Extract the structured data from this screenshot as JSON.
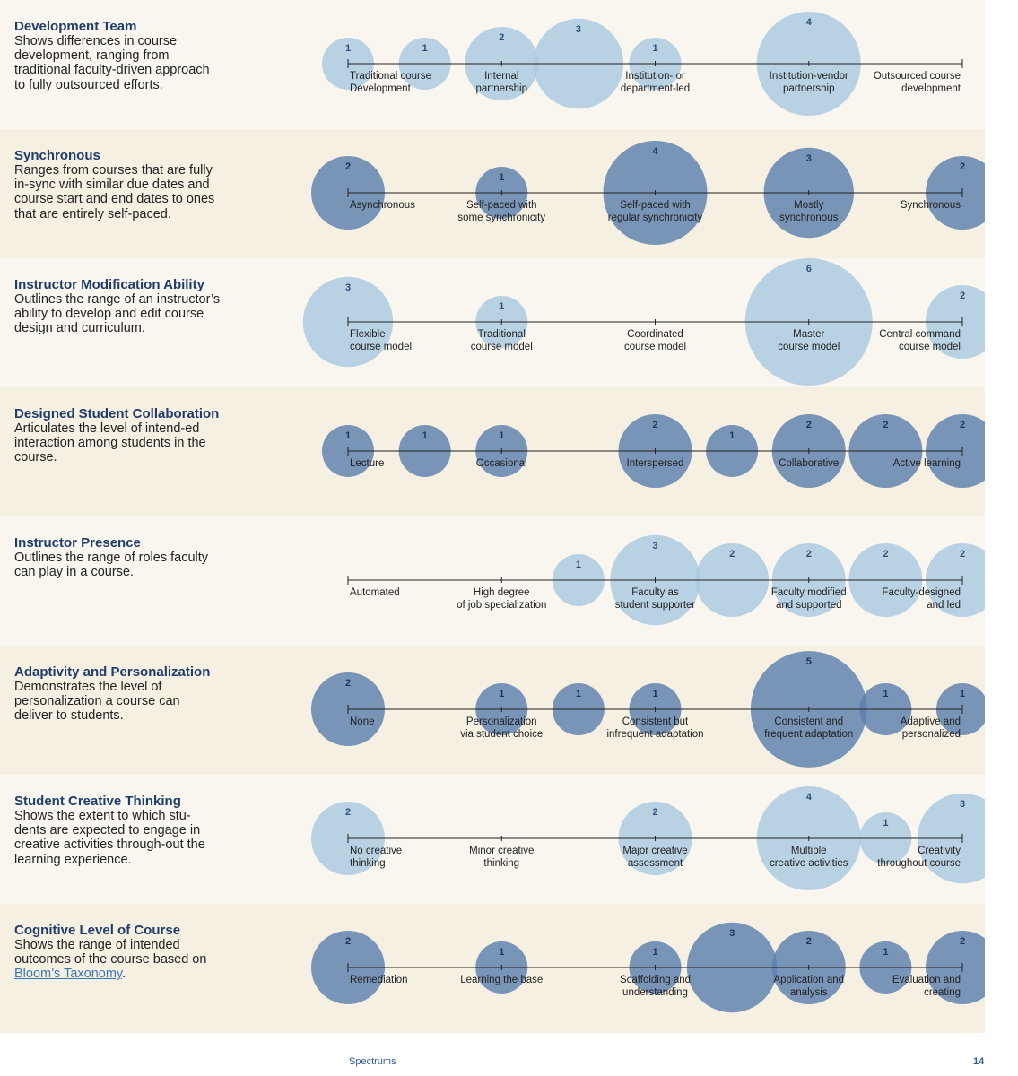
{
  "colors": {
    "light_bubble": "#a9c9e1",
    "dark_bubble": "#5b7fad",
    "count_light": "#2f4f7a",
    "count_dark": "#1e3558",
    "axis": "#222222",
    "title": "#1f3c6b",
    "link": "#3a78b5"
  },
  "footer": {
    "section": "Spectrums",
    "page": "14"
  },
  "rows": [
    {
      "title": "Development Team",
      "description": "Shows differences in course development, ranging from traditional faculty-driven approach to fully outsourced efforts.",
      "shade": "light",
      "bubble_color": "light",
      "tick_labels": [
        {
          "pos": 0,
          "text": [
            "Traditional course",
            "Development"
          ]
        },
        {
          "pos": 1,
          "text": [
            "Internal",
            "partnership"
          ]
        },
        {
          "pos": 2,
          "text": [
            "Institution- or",
            "department-led"
          ]
        },
        {
          "pos": 3,
          "text": [
            "Institution-vendor",
            "partnership"
          ]
        },
        {
          "pos": 4,
          "text": [
            "Outsourced course",
            "development"
          ]
        }
      ],
      "chart_data": {
        "type": "scatter",
        "x": [
          0,
          0.5,
          1,
          1.5,
          2,
          3
        ],
        "counts": [
          1,
          1,
          2,
          3,
          1,
          4
        ]
      }
    },
    {
      "title": "Synchronous",
      "description": "Ranges from courses that are fully in-sync with similar due dates and course start and end dates to ones that are entirely self-paced.",
      "shade": "tan",
      "bubble_color": "dark",
      "tick_labels": [
        {
          "pos": 0,
          "text": [
            "Asynchronous"
          ]
        },
        {
          "pos": 1,
          "text": [
            "Self-paced with",
            "some synchronicity"
          ]
        },
        {
          "pos": 2,
          "text": [
            "Self-paced with",
            "regular synchronicity"
          ]
        },
        {
          "pos": 3,
          "text": [
            "Mostly",
            "synchronous"
          ]
        },
        {
          "pos": 4,
          "text": [
            "Synchronous"
          ]
        }
      ],
      "chart_data": {
        "type": "scatter",
        "x": [
          0,
          1,
          2,
          3,
          4
        ],
        "counts": [
          2,
          1,
          4,
          3,
          2
        ]
      }
    },
    {
      "title": "Instructor Modification Ability",
      "description": "Outlines the range of an instructor’s ability to develop and edit course design and curriculum.",
      "shade": "light",
      "bubble_color": "light",
      "tick_labels": [
        {
          "pos": 0,
          "text": [
            "Flexible",
            "course model"
          ]
        },
        {
          "pos": 1,
          "text": [
            "Traditional",
            "course model"
          ]
        },
        {
          "pos": 2,
          "text": [
            "Coordinated",
            "course model"
          ]
        },
        {
          "pos": 3,
          "text": [
            "Master",
            "course model"
          ]
        },
        {
          "pos": 4,
          "text": [
            "Central command",
            "course model"
          ]
        }
      ],
      "chart_data": {
        "type": "scatter",
        "x": [
          0,
          1,
          3,
          4
        ],
        "counts": [
          3,
          1,
          6,
          2
        ]
      }
    },
    {
      "title": "Designed Student Collaboration",
      "description": "Articulates the level of intend-ed interaction among students in the course.",
      "shade": "tan",
      "bubble_color": "dark",
      "tick_labels": [
        {
          "pos": 0,
          "text": [
            "Lecture"
          ]
        },
        {
          "pos": 1,
          "text": [
            "Occasional"
          ]
        },
        {
          "pos": 2,
          "text": [
            "Interspersed"
          ]
        },
        {
          "pos": 3,
          "text": [
            "Collaborative"
          ]
        },
        {
          "pos": 4,
          "text": [
            "Active learning"
          ]
        }
      ],
      "chart_data": {
        "type": "scatter",
        "x": [
          0,
          0.5,
          1,
          2,
          2.5,
          3,
          3.5,
          4
        ],
        "counts": [
          1,
          1,
          1,
          2,
          1,
          2,
          2,
          2
        ]
      }
    },
    {
      "title": "Instructor Presence",
      "description": "Outlines the range of roles faculty can play in a course.",
      "shade": "light",
      "bubble_color": "light",
      "tick_labels": [
        {
          "pos": 0,
          "text": [
            "Automated"
          ]
        },
        {
          "pos": 1,
          "text": [
            "High degree",
            "of job specialization"
          ]
        },
        {
          "pos": 2,
          "text": [
            "Faculty as",
            "student supporter"
          ]
        },
        {
          "pos": 3,
          "text": [
            "Faculty modified",
            "and supported"
          ]
        },
        {
          "pos": 4,
          "text": [
            "Faculty-designed",
            "and led"
          ]
        }
      ],
      "chart_data": {
        "type": "scatter",
        "x": [
          1.5,
          2,
          2.5,
          3,
          3.5,
          4
        ],
        "counts": [
          1,
          3,
          2,
          2,
          2,
          2
        ]
      }
    },
    {
      "title": "Adaptivity and Personalization",
      "description": "Demonstrates the level of personalization a course can deliver to students.",
      "shade": "tan",
      "bubble_color": "dark",
      "tick_labels": [
        {
          "pos": 0,
          "text": [
            "None"
          ]
        },
        {
          "pos": 1,
          "text": [
            "Personalization",
            "via student choice"
          ]
        },
        {
          "pos": 2,
          "text": [
            "Consistent but",
            "infrequent adaptation"
          ]
        },
        {
          "pos": 3,
          "text": [
            "Consistent and",
            "frequent adaptation"
          ]
        },
        {
          "pos": 4,
          "text": [
            "Adaptive and",
            "personalized"
          ]
        }
      ],
      "chart_data": {
        "type": "scatter",
        "x": [
          0,
          1,
          1.5,
          2,
          3,
          3.5,
          4
        ],
        "counts": [
          2,
          1,
          1,
          1,
          5,
          1,
          1
        ]
      }
    },
    {
      "title": "Student Creative Thinking",
      "description": "Shows the extent to which stu-dents are expected to engage in creative activities through-out the learning experience.",
      "shade": "light",
      "bubble_color": "light",
      "tick_labels": [
        {
          "pos": 0,
          "text": [
            "No creative",
            "thinking"
          ]
        },
        {
          "pos": 1,
          "text": [
            "Minor creative",
            "thinking"
          ]
        },
        {
          "pos": 2,
          "text": [
            "Major creative",
            "assessment"
          ]
        },
        {
          "pos": 3,
          "text": [
            "Multiple",
            "creative activities"
          ]
        },
        {
          "pos": 4,
          "text": [
            "Creativity",
            "throughout course"
          ]
        }
      ],
      "chart_data": {
        "type": "scatter",
        "x": [
          0,
          2,
          3,
          3.5,
          4
        ],
        "counts": [
          2,
          2,
          4,
          1,
          3
        ]
      }
    },
    {
      "title": "Cognitive Level of Course",
      "description_prefix": "Shows the range of intended outcomes of the course based on ",
      "description_link": "Bloom’s Taxonomy",
      "description_suffix": ".",
      "shade": "tan",
      "bubble_color": "dark",
      "tick_labels": [
        {
          "pos": 0,
          "text": [
            "Remediation"
          ]
        },
        {
          "pos": 1,
          "text": [
            "Learning the base"
          ]
        },
        {
          "pos": 2,
          "text": [
            "Scaffolding and",
            "understanding"
          ]
        },
        {
          "pos": 3,
          "text": [
            "Application and",
            "analysis"
          ]
        },
        {
          "pos": 4,
          "text": [
            "Evaluation and",
            "creating"
          ]
        }
      ],
      "chart_data": {
        "type": "scatter",
        "x": [
          0,
          1,
          2,
          2.5,
          3,
          3.5,
          4
        ],
        "counts": [
          2,
          1,
          1,
          3,
          2,
          1,
          2
        ]
      }
    }
  ]
}
